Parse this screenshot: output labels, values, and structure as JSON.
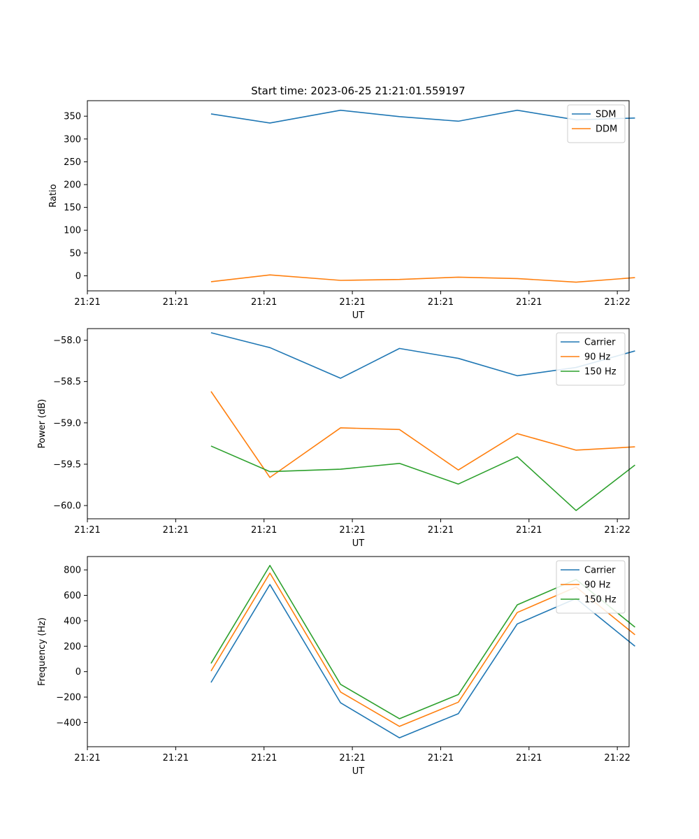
{
  "figure_title": "Start time: 2023-06-25 21:21:01.559197",
  "chart_data": [
    {
      "type": "line",
      "title": "Start time: 2023-06-25 21:21:01.559197",
      "xlabel": "UT",
      "ylabel": "Ratio",
      "x": [
        1.05,
        1.55,
        2.15,
        2.65,
        3.15,
        3.65,
        4.15,
        4.65
      ],
      "xlim": [
        0.0,
        4.6
      ],
      "x_ticks": [
        {
          "value": 0.0,
          "label": "21:21"
        },
        {
          "value": 0.75,
          "label": "21:21"
        },
        {
          "value": 1.5,
          "label": "21:21"
        },
        {
          "value": 2.25,
          "label": "21:21"
        },
        {
          "value": 3.0,
          "label": "21:21"
        },
        {
          "value": 3.75,
          "label": "21:21"
        },
        {
          "value": 4.5,
          "label": "21:22"
        }
      ],
      "ylim": [
        -33,
        384
      ],
      "y_ticks": [
        {
          "value": 0,
          "label": "0"
        },
        {
          "value": 50,
          "label": "50"
        },
        {
          "value": 100,
          "label": "100"
        },
        {
          "value": 150,
          "label": "150"
        },
        {
          "value": 200,
          "label": "200"
        },
        {
          "value": 250,
          "label": "250"
        },
        {
          "value": 300,
          "label": "300"
        },
        {
          "value": 350,
          "label": "350"
        }
      ],
      "grid": false,
      "legend_position": "top-right",
      "series": [
        {
          "name": "SDM",
          "color": "#1f77b4",
          "values": [
            355,
            335,
            363,
            349,
            339,
            363,
            342,
            346
          ]
        },
        {
          "name": "DDM",
          "color": "#ff7f0e",
          "values": [
            -13,
            2,
            -10,
            -8,
            -3,
            -6,
            -14,
            -4
          ]
        }
      ]
    },
    {
      "type": "line",
      "title": "",
      "xlabel": "UT",
      "ylabel": "Power (dB)",
      "x": [
        1.05,
        1.55,
        2.15,
        2.65,
        3.15,
        3.65,
        4.15,
        4.65
      ],
      "xlim": [
        0.0,
        4.6
      ],
      "x_ticks": [
        {
          "value": 0.0,
          "label": "21:21"
        },
        {
          "value": 0.75,
          "label": "21:21"
        },
        {
          "value": 1.5,
          "label": "21:21"
        },
        {
          "value": 2.25,
          "label": "21:21"
        },
        {
          "value": 3.0,
          "label": "21:21"
        },
        {
          "value": 3.75,
          "label": "21:21"
        },
        {
          "value": 4.5,
          "label": "21:22"
        }
      ],
      "ylim": [
        -60.16,
        -57.86
      ],
      "y_ticks": [
        {
          "value": -60.0,
          "label": "−60.0"
        },
        {
          "value": -59.5,
          "label": "−59.5"
        },
        {
          "value": -59.0,
          "label": "−59.0"
        },
        {
          "value": -58.5,
          "label": "−58.5"
        },
        {
          "value": -58.0,
          "label": "−58.0"
        }
      ],
      "grid": false,
      "legend_position": "top-right",
      "series": [
        {
          "name": "Carrier",
          "color": "#1f77b4",
          "values": [
            -57.91,
            -58.09,
            -58.46,
            -58.1,
            -58.22,
            -58.43,
            -58.33,
            -58.13
          ]
        },
        {
          "name": "90 Hz",
          "color": "#ff7f0e",
          "values": [
            -58.62,
            -59.66,
            -59.06,
            -59.08,
            -59.57,
            -59.13,
            -59.33,
            -59.29
          ]
        },
        {
          "name": "150 Hz",
          "color": "#2ca02c",
          "values": [
            -59.28,
            -59.59,
            -59.56,
            -59.49,
            -59.74,
            -59.41,
            -60.06,
            -59.51
          ]
        }
      ]
    },
    {
      "type": "line",
      "title": "",
      "xlabel": "UT",
      "ylabel": "Frequency (Hz)",
      "x": [
        1.05,
        1.55,
        2.15,
        2.65,
        3.15,
        3.65,
        4.15,
        4.65
      ],
      "xlim": [
        0.0,
        4.6
      ],
      "x_ticks": [
        {
          "value": 0.0,
          "label": "21:21"
        },
        {
          "value": 0.75,
          "label": "21:21"
        },
        {
          "value": 1.5,
          "label": "21:21"
        },
        {
          "value": 2.25,
          "label": "21:21"
        },
        {
          "value": 3.0,
          "label": "21:21"
        },
        {
          "value": 3.75,
          "label": "21:21"
        },
        {
          "value": 4.5,
          "label": "21:22"
        }
      ],
      "ylim": [
        -590,
        905
      ],
      "y_ticks": [
        {
          "value": -400,
          "label": "−400"
        },
        {
          "value": -200,
          "label": "−200"
        },
        {
          "value": 0,
          "label": "0"
        },
        {
          "value": 200,
          "label": "200"
        },
        {
          "value": 400,
          "label": "400"
        },
        {
          "value": 600,
          "label": "600"
        },
        {
          "value": 800,
          "label": "800"
        }
      ],
      "grid": false,
      "legend_position": "top-right",
      "series": [
        {
          "name": "Carrier",
          "color": "#1f77b4",
          "values": [
            -85,
            685,
            -245,
            -520,
            -330,
            375,
            575,
            200
          ]
        },
        {
          "name": "90 Hz",
          "color": "#ff7f0e",
          "values": [
            5,
            775,
            -160,
            -430,
            -240,
            465,
            665,
            290
          ]
        },
        {
          "name": "150 Hz",
          "color": "#2ca02c",
          "values": [
            65,
            835,
            -100,
            -370,
            -180,
            525,
            725,
            350
          ]
        }
      ]
    }
  ]
}
